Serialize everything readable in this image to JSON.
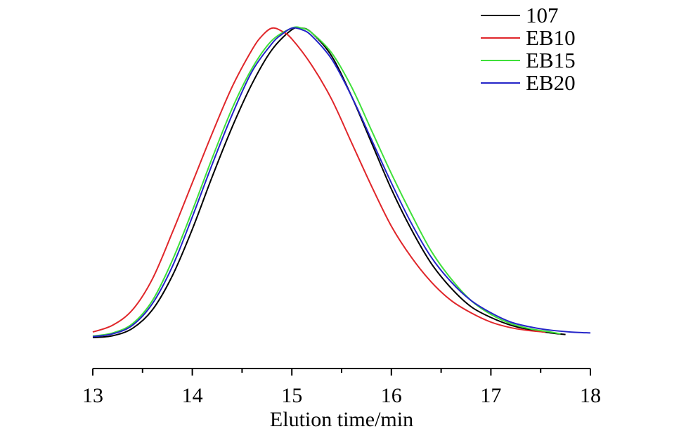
{
  "chart_data": {
    "type": "line",
    "title": "",
    "xlabel": "Elution time/min",
    "ylabel": "",
    "xlim": [
      13,
      18
    ],
    "ylim": [
      0,
      1
    ],
    "xticks": [
      13,
      14,
      15,
      16,
      17,
      18
    ],
    "x_minor_step": 0.5,
    "y_axis_visible": false,
    "grid": false,
    "legend_position": "top-right",
    "series": [
      {
        "name": "107",
        "color": "#000000",
        "points": [
          [
            13.0,
            0.0
          ],
          [
            13.2,
            0.006
          ],
          [
            13.4,
            0.03
          ],
          [
            13.6,
            0.09
          ],
          [
            13.8,
            0.2
          ],
          [
            14.0,
            0.35
          ],
          [
            14.2,
            0.52
          ],
          [
            14.4,
            0.68
          ],
          [
            14.6,
            0.82
          ],
          [
            14.8,
            0.93
          ],
          [
            15.0,
            0.995
          ],
          [
            15.1,
            1.0
          ],
          [
            15.2,
            0.985
          ],
          [
            15.4,
            0.91
          ],
          [
            15.6,
            0.78
          ],
          [
            15.8,
            0.63
          ],
          [
            16.0,
            0.48
          ],
          [
            16.2,
            0.35
          ],
          [
            16.4,
            0.24
          ],
          [
            16.6,
            0.16
          ],
          [
            16.8,
            0.1
          ],
          [
            17.0,
            0.065
          ],
          [
            17.2,
            0.04
          ],
          [
            17.4,
            0.025
          ],
          [
            17.6,
            0.015
          ],
          [
            17.75,
            0.01
          ]
        ]
      },
      {
        "name": "EB10",
        "color": "#e0262a",
        "points": [
          [
            13.0,
            0.018
          ],
          [
            13.2,
            0.04
          ],
          [
            13.4,
            0.09
          ],
          [
            13.6,
            0.19
          ],
          [
            13.8,
            0.34
          ],
          [
            14.0,
            0.5
          ],
          [
            14.2,
            0.66
          ],
          [
            14.4,
            0.81
          ],
          [
            14.6,
            0.93
          ],
          [
            14.7,
            0.975
          ],
          [
            14.8,
            1.0
          ],
          [
            14.9,
            0.99
          ],
          [
            15.0,
            0.965
          ],
          [
            15.2,
            0.88
          ],
          [
            15.4,
            0.77
          ],
          [
            15.6,
            0.63
          ],
          [
            15.8,
            0.49
          ],
          [
            16.0,
            0.36
          ],
          [
            16.2,
            0.26
          ],
          [
            16.4,
            0.18
          ],
          [
            16.6,
            0.12
          ],
          [
            16.8,
            0.08
          ],
          [
            17.0,
            0.05
          ],
          [
            17.2,
            0.032
          ],
          [
            17.4,
            0.022
          ],
          [
            17.55,
            0.018
          ]
        ]
      },
      {
        "name": "EB15",
        "color": "#3fe03a",
        "points": [
          [
            13.0,
            0.005
          ],
          [
            13.2,
            0.015
          ],
          [
            13.4,
            0.045
          ],
          [
            13.6,
            0.12
          ],
          [
            13.8,
            0.25
          ],
          [
            14.0,
            0.41
          ],
          [
            14.2,
            0.58
          ],
          [
            14.4,
            0.74
          ],
          [
            14.6,
            0.87
          ],
          [
            14.8,
            0.96
          ],
          [
            15.0,
            1.0
          ],
          [
            15.1,
            1.0
          ],
          [
            15.2,
            0.985
          ],
          [
            15.4,
            0.92
          ],
          [
            15.6,
            0.81
          ],
          [
            15.8,
            0.67
          ],
          [
            16.0,
            0.53
          ],
          [
            16.2,
            0.4
          ],
          [
            16.4,
            0.28
          ],
          [
            16.6,
            0.19
          ],
          [
            16.8,
            0.12
          ],
          [
            17.0,
            0.075
          ],
          [
            17.2,
            0.045
          ],
          [
            17.4,
            0.028
          ],
          [
            17.6,
            0.018
          ],
          [
            17.7,
            0.012
          ]
        ]
      },
      {
        "name": "EB20",
        "color": "#2424c8",
        "points": [
          [
            13.0,
            0.003
          ],
          [
            13.2,
            0.012
          ],
          [
            13.4,
            0.04
          ],
          [
            13.6,
            0.11
          ],
          [
            13.8,
            0.23
          ],
          [
            14.0,
            0.39
          ],
          [
            14.2,
            0.56
          ],
          [
            14.4,
            0.72
          ],
          [
            14.6,
            0.86
          ],
          [
            14.8,
            0.95
          ],
          [
            14.9,
            0.98
          ],
          [
            15.0,
            1.0
          ],
          [
            15.1,
            0.995
          ],
          [
            15.2,
            0.975
          ],
          [
            15.4,
            0.9
          ],
          [
            15.6,
            0.78
          ],
          [
            15.8,
            0.64
          ],
          [
            16.0,
            0.5
          ],
          [
            16.2,
            0.37
          ],
          [
            16.4,
            0.26
          ],
          [
            16.6,
            0.18
          ],
          [
            16.8,
            0.12
          ],
          [
            17.0,
            0.08
          ],
          [
            17.2,
            0.05
          ],
          [
            17.4,
            0.034
          ],
          [
            17.6,
            0.024
          ],
          [
            17.8,
            0.018
          ],
          [
            18.0,
            0.015
          ]
        ]
      }
    ]
  }
}
